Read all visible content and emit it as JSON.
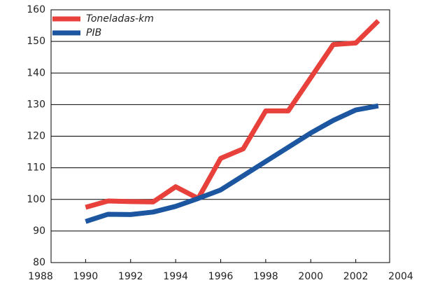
{
  "chart_data": {
    "type": "line",
    "x": [
      1990,
      1991,
      1992,
      1993,
      1994,
      1995,
      1996,
      1997,
      1998,
      1999,
      2000,
      2001,
      2002,
      2003
    ],
    "series": [
      {
        "name": "Toneladas-km",
        "color": "#e8413b",
        "values": [
          97.5,
          99.5,
          99.3,
          99.2,
          104,
          100.3,
          113,
          116,
          128,
          128,
          138.5,
          149,
          149.5,
          156.5
        ]
      },
      {
        "name": "PIB",
        "color": "#1c56a0",
        "values": [
          93,
          95.3,
          95.2,
          96,
          97.8,
          100.3,
          103,
          107.5,
          112,
          116.5,
          121,
          125,
          128.3,
          129.6
        ]
      }
    ],
    "xlim": [
      1988,
      2004
    ],
    "xticks": [
      1988,
      1990,
      1992,
      1994,
      1996,
      1998,
      2000,
      2002,
      2004
    ],
    "ylim": [
      80,
      160
    ],
    "yticks": [
      80,
      90,
      100,
      110,
      120,
      130,
      140,
      150,
      160
    ],
    "grid": true,
    "legend": "top-left"
  }
}
